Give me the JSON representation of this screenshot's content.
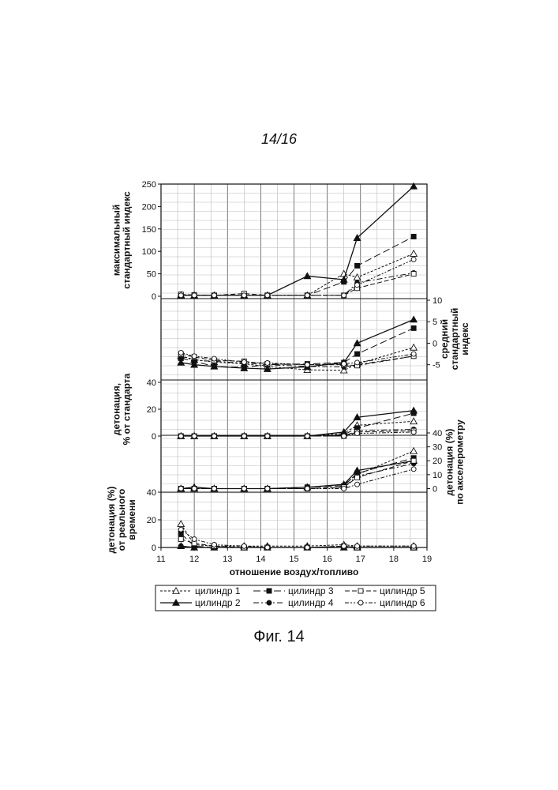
{
  "page_number": "14/16",
  "figure_caption": "Фиг. 14",
  "chart_data": {
    "type": "line",
    "xlabel": "отношение воздух/топливо",
    "x_ticks": [
      11,
      12,
      13,
      14,
      15,
      16,
      17,
      18,
      19
    ],
    "xlim": [
      11,
      19
    ],
    "grid": true,
    "legend_position": "bottom",
    "legend": [
      "цилиндр 1",
      "цилиндр 2",
      "цилиндр 3",
      "цилиндр 4",
      "цилиндр 5",
      "цилиндр 6"
    ],
    "panels": [
      {
        "id": "p1",
        "ylabel": [
          "максимальный",
          "стандартный индекс"
        ],
        "axis_side": "left",
        "ylim": [
          0,
          250
        ],
        "y_ticks": [
          0,
          50,
          100,
          150,
          200,
          250
        ],
        "x": [
          11.6,
          12.0,
          12.6,
          13.5,
          14.2,
          15.4,
          16.5,
          16.9,
          18.6
        ],
        "series": [
          {
            "name": "цилиндр 1",
            "values": [
              3,
              2,
              2,
              2,
              2,
              2,
              50,
              42,
              95
            ]
          },
          {
            "name": "цилиндр 2",
            "values": [
              2,
              2,
              2,
              2,
              2,
              45,
              37,
              130,
              245
            ]
          },
          {
            "name": "цилиндр 3",
            "values": [
              2,
              2,
              2,
              2,
              2,
              2,
              32,
              68,
              133
            ]
          },
          {
            "name": "цилиндр 4",
            "values": [
              2,
              2,
              2,
              2,
              2,
              2,
              2,
              30,
              52
            ]
          },
          {
            "name": "цилиндр 5",
            "values": [
              4,
              3,
              2,
              6,
              2,
              2,
              2,
              18,
              50
            ]
          },
          {
            "name": "цилиндр 6",
            "values": [
              2,
              2,
              2,
              2,
              2,
              2,
              2,
              25,
              82
            ]
          }
        ]
      },
      {
        "id": "p2",
        "ylabel": [
          "средний",
          "стандартный",
          "индекс"
        ],
        "axis_side": "right",
        "ylim": [
          -8,
          10
        ],
        "y_ticks": [
          -5,
          0,
          5,
          10
        ],
        "x": [
          11.6,
          12.0,
          12.6,
          13.5,
          14.2,
          15.4,
          16.5,
          16.9,
          18.6
        ],
        "series": [
          {
            "name": "цилиндр 1",
            "values": [
              -3.0,
              -3.8,
              -4.4,
              -4.8,
              -5.4,
              -6.2,
              -6.3,
              -4.8,
              -1.0
            ]
          },
          {
            "name": "цилиндр 2",
            "values": [
              -4.5,
              -5.0,
              -5.4,
              -5.8,
              -6.0,
              -5.5,
              -4.5,
              0.0,
              5.5
            ]
          },
          {
            "name": "цилиндр 3",
            "values": [
              -3.5,
              -4.2,
              -5.4,
              -5.6,
              -5.0,
              -4.8,
              -4.5,
              -2.5,
              3.5
            ]
          },
          {
            "name": "цилиндр 4",
            "values": [
              -3.0,
              -4.0,
              -4.2,
              -4.6,
              -5.0,
              -5.4,
              -5.5,
              -5.0,
              -3.0
            ]
          },
          {
            "name": "цилиндр 5",
            "values": [
              -2.5,
              -3.2,
              -4.0,
              -4.2,
              -4.8,
              -5.0,
              -5.0,
              -5.2,
              -3.0
            ]
          },
          {
            "name": "цилиндр 6",
            "values": [
              -2.2,
              -3.0,
              -3.6,
              -4.4,
              -4.6,
              -5.0,
              -4.8,
              -4.5,
              -2.5
            ]
          }
        ]
      },
      {
        "id": "p3",
        "ylabel": [
          "детонация,",
          "% от стандарта"
        ],
        "axis_side": "left",
        "ylim": [
          0,
          40
        ],
        "y_ticks": [
          0,
          20,
          40
        ],
        "x": [
          11.6,
          12.0,
          12.6,
          13.5,
          14.2,
          15.4,
          16.5,
          16.9,
          18.6
        ],
        "series": [
          {
            "name": "цилиндр 1",
            "values": [
              0,
              0,
              0,
              0,
              0,
              0,
              2,
              8,
              11
            ]
          },
          {
            "name": "цилиндр 2",
            "values": [
              0,
              0,
              0,
              0,
              0,
              0,
              3,
              14,
              19
            ]
          },
          {
            "name": "цилиндр 3",
            "values": [
              0,
              0,
              0,
              0,
              0,
              0,
              1,
              6,
              17
            ]
          },
          {
            "name": "цилиндр 4",
            "values": [
              0,
              0,
              0,
              0,
              0,
              0,
              0,
              4,
              5
            ]
          },
          {
            "name": "цилиндр 5",
            "values": [
              0,
              0,
              0,
              0,
              0,
              0,
              0,
              3,
              4
            ]
          },
          {
            "name": "цилиндр 6",
            "values": [
              0,
              0,
              0,
              0,
              0,
              0,
              0,
              2,
              3
            ]
          }
        ]
      },
      {
        "id": "p4",
        "ylabel": [
          "детонация (%)",
          "по акселерометру"
        ],
        "axis_side": "right",
        "ylim": [
          -2,
          40
        ],
        "y_ticks": [
          0,
          10,
          20,
          30,
          40
        ],
        "x": [
          11.6,
          12.0,
          12.6,
          13.5,
          14.2,
          15.4,
          16.5,
          16.9,
          18.6
        ],
        "series": [
          {
            "name": "цилиндр 1",
            "values": [
              0,
              0,
              0,
              0,
              0,
              1,
              3,
              10,
              27
            ]
          },
          {
            "name": "цилиндр 2",
            "values": [
              0,
              1,
              0,
              0,
              0,
              1,
              3,
              13,
              20
            ]
          },
          {
            "name": "цилиндр 3",
            "values": [
              0,
              0,
              0,
              0,
              0,
              1,
              2,
              11,
              22
            ]
          },
          {
            "name": "цилиндр 4",
            "values": [
              0,
              0,
              0,
              0,
              0,
              0,
              1,
              9,
              18
            ]
          },
          {
            "name": "цилиндр 5",
            "values": [
              0,
              0,
              0,
              0,
              0,
              0,
              1,
              8,
              20
            ]
          },
          {
            "name": "цилиндр 6",
            "values": [
              0,
              0,
              0,
              0,
              0,
              0,
              0,
              3,
              14
            ]
          }
        ]
      },
      {
        "id": "p5",
        "ylabel": [
          "детонация (%)",
          "от реального",
          "времени"
        ],
        "axis_side": "left",
        "ylim": [
          0,
          40
        ],
        "y_ticks": [
          0,
          20,
          40
        ],
        "x": [
          11.6,
          12.0,
          12.6,
          13.5,
          14.2,
          15.4,
          16.5,
          16.9,
          18.6
        ],
        "series": [
          {
            "name": "цилиндр 1",
            "values": [
              17,
              2,
              1,
              1,
              1,
              1,
              2,
              1,
              1
            ]
          },
          {
            "name": "цилиндр 2",
            "values": [
              1,
              0,
              0,
              0,
              0,
              0,
              0,
              0,
              0
            ]
          },
          {
            "name": "цилиндр 3",
            "values": [
              10,
              1,
              0,
              0,
              0,
              0,
              0,
              0,
              0
            ]
          },
          {
            "name": "цилиндр 4",
            "values": [
              1,
              0,
              0,
              0,
              0,
              0,
              0,
              0,
              0
            ]
          },
          {
            "name": "цилиндр 5",
            "values": [
              6,
              3,
              1,
              0,
              0,
              0,
              1,
              0,
              0
            ]
          },
          {
            "name": "цилиндр 6",
            "values": [
              13,
              6,
              2,
              1,
              0,
              0,
              1,
              1,
              1
            ]
          }
        ]
      }
    ]
  }
}
